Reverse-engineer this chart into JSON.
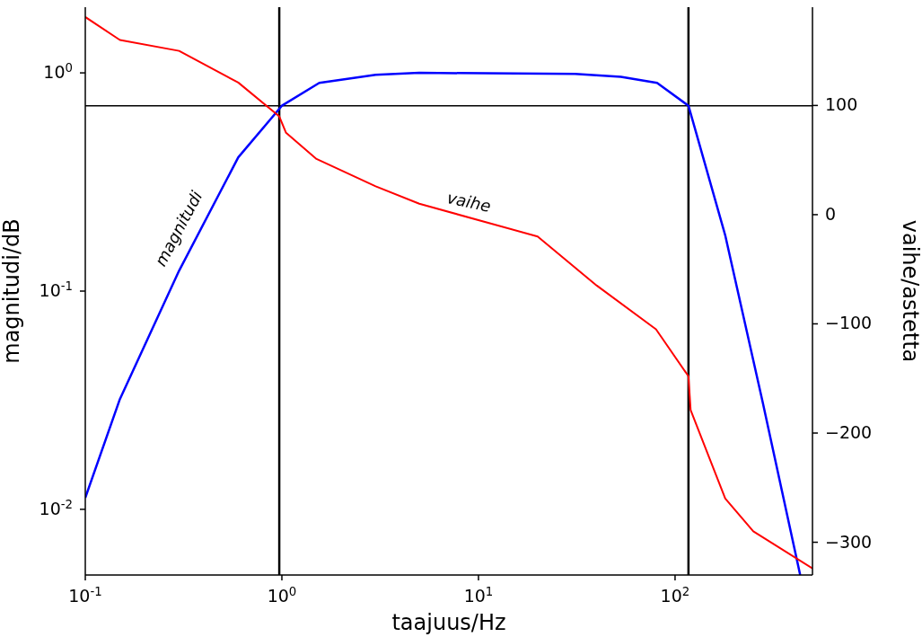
{
  "chart_data": {
    "type": "line",
    "xlabel": "taajuus/Hz",
    "ylabel": "magnitudi/dB",
    "y2label": "vaihe/astetta",
    "log": "xy",
    "xlim": [
      0.1,
      500
    ],
    "xticks": [
      {
        "value": 0.1,
        "label": "10$^{-1}$"
      },
      {
        "value": 1,
        "label": "10$^{0}$"
      },
      {
        "value": 10,
        "label": "10$^{1}$"
      },
      {
        "value": 100,
        "label": "10$^{2}$"
      }
    ],
    "ylim": [
      0.005,
      2
    ],
    "yticks": [
      {
        "value": 0.01,
        "label": "10$^{-2}$"
      },
      {
        "value": 0.1,
        "label": "10$^{-1}$"
      },
      {
        "value": 1,
        "label": "10$^{0}$"
      }
    ],
    "y2lim": [
      -330,
      190
    ],
    "y2ticks": [
      {
        "value": -300,
        "label": "−300"
      },
      {
        "value": -200,
        "label": "−200"
      },
      {
        "value": -100,
        "label": "−100"
      },
      0,
      100
    ],
    "series": [
      {
        "color": "#0000ff",
        "x": [
          0.1,
          0.15,
          0.3,
          0.6,
          1,
          1.55,
          3,
          5,
          31,
          53,
          81,
          117,
          180,
          279,
          433
        ],
        "values": [
          0.0113,
          0.032,
          0.124,
          0.41,
          0.707,
          0.9,
          0.98,
          1.0,
          0.99,
          0.96,
          0.9,
          0.707,
          0.18,
          0.031,
          0.005
        ]
      },
      {
        "color": "#ff0000",
        "axis": "y2",
        "x": [
          0.1,
          0.15,
          0.3,
          0.6,
          0.97,
          1.05,
          1.5,
          3,
          5,
          20,
          40,
          80,
          117,
          120,
          180,
          250,
          500
        ],
        "values": [
          181,
          160,
          150,
          121,
          90,
          75,
          51,
          26,
          10,
          -20,
          -65,
          -105,
          -148,
          -179,
          -260,
          -290,
          -324
        ]
      }
    ],
    "ref_lines": [
      {
        "axis": "x",
        "value": 0.97,
        "color": "#000000"
      },
      {
        "axis": "x",
        "value": 117,
        "color": "#000000"
      },
      {
        "axis": "y",
        "value": 0.707,
        "color": "#000000"
      }
    ],
    "annotations": [
      "magnitudi",
      "vaihe"
    ]
  }
}
